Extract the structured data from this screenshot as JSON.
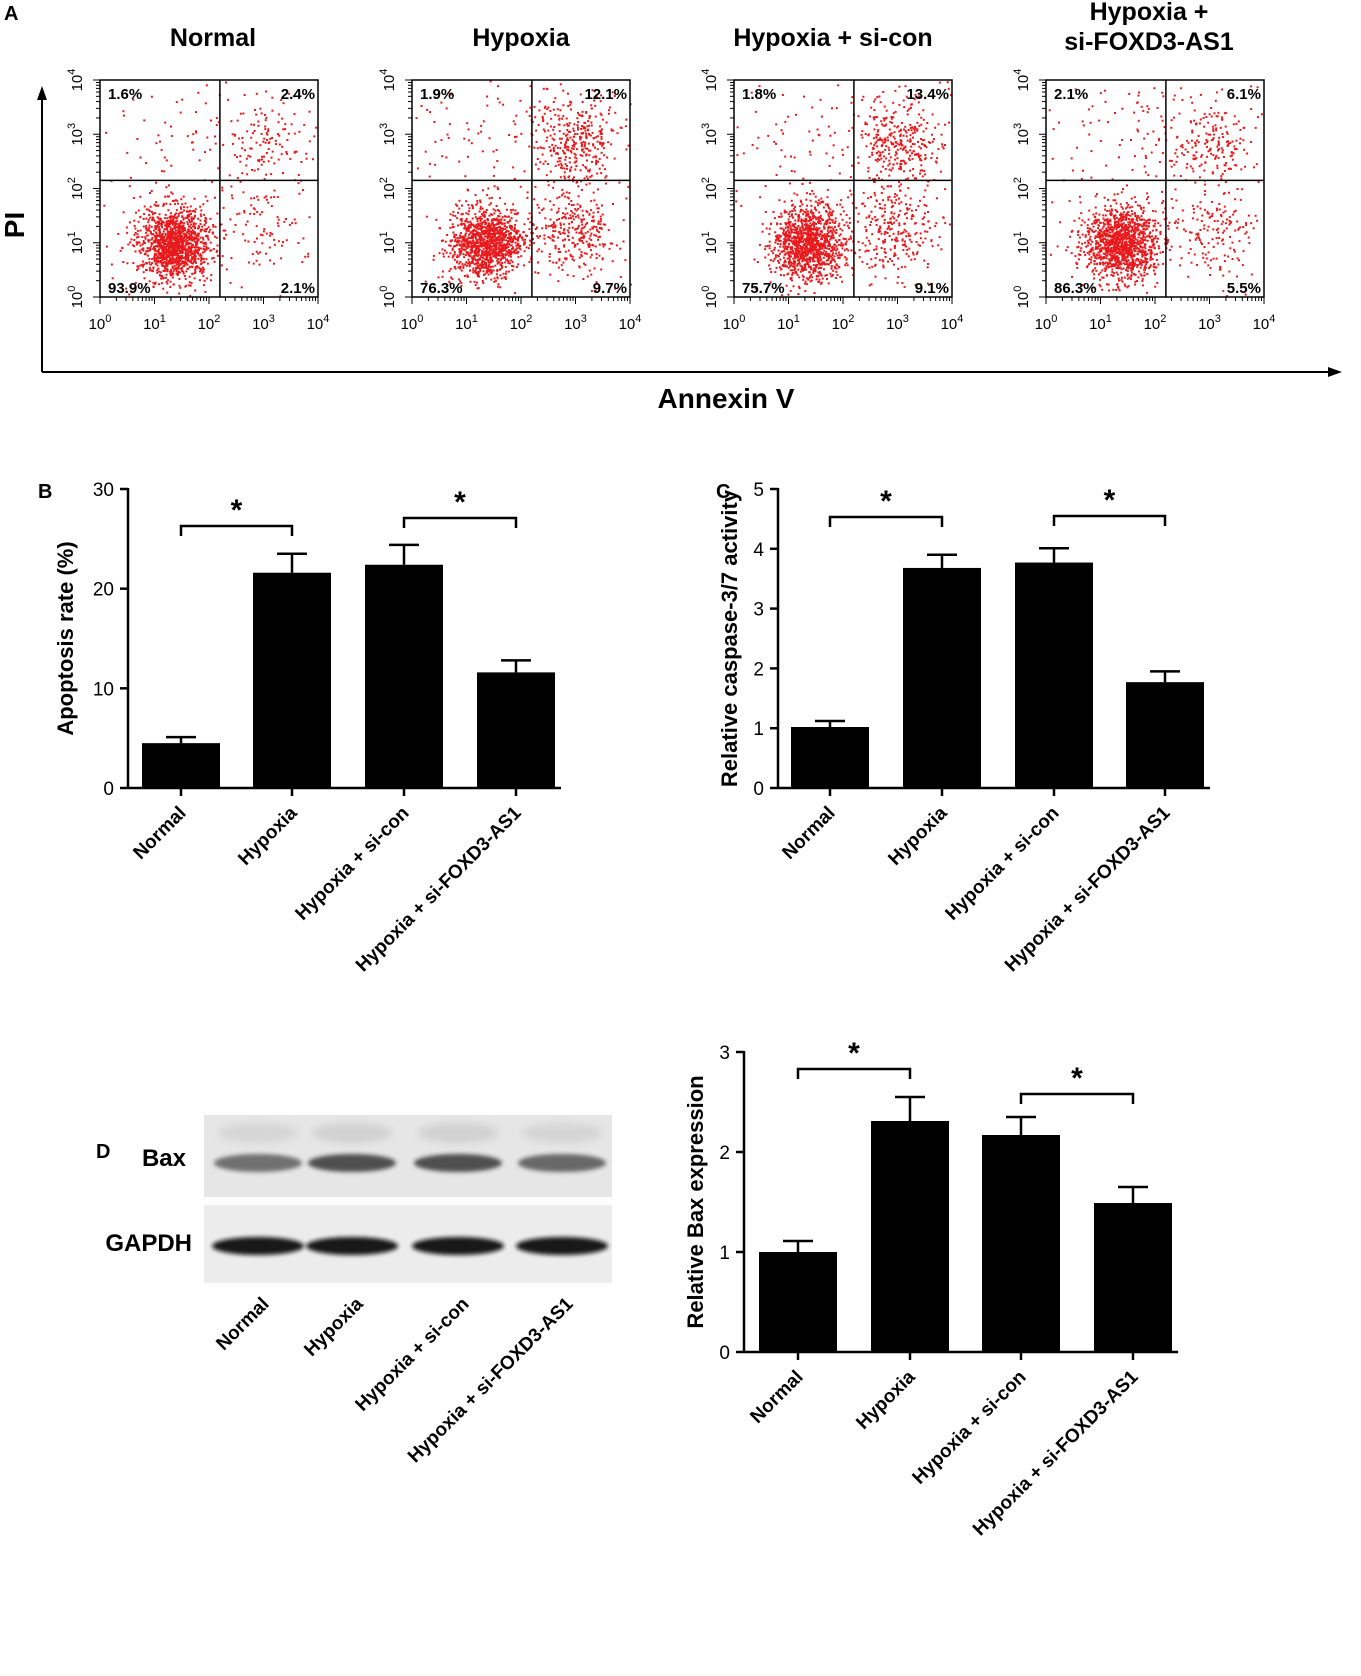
{
  "panels": {
    "A": "A",
    "B": "B",
    "C": "C",
    "D": "D"
  },
  "colors": {
    "dots": "#e8191c",
    "bars": "#000000",
    "axis": "#000000"
  },
  "flow": {
    "y_label": "PI",
    "x_label": "Annexin V",
    "tick_base": "10",
    "tick_exponents": [
      "0",
      "1",
      "2",
      "3",
      "4"
    ],
    "plots": [
      {
        "title": [
          "Normal"
        ],
        "ul": "1.6%",
        "ur": "2.4%",
        "ll": "93.9%",
        "lr": "2.1%",
        "clusters": {
          "ll": 1300,
          "ur": 110,
          "lr": 90,
          "ul": 50
        }
      },
      {
        "title": [
          "Hypoxia"
        ],
        "ul": "1.9%",
        "ur": "12.1%",
        "ll": "76.3%",
        "lr": "9.7%",
        "clusters": {
          "ll": 1150,
          "ur": 350,
          "lr": 300,
          "ul": 55
        }
      },
      {
        "title": [
          "Hypoxia + si-con"
        ],
        "ul": "1.8%",
        "ur": "13.4%",
        "ll": "75.7%",
        "lr": "9.1%",
        "clusters": {
          "ll": 1150,
          "ur": 330,
          "lr": 260,
          "ul": 55
        }
      },
      {
        "title": [
          "Hypoxia +",
          "si-FOXD3-AS1"
        ],
        "ul": "2.1%",
        "ur": "6.1%",
        "ll": "86.3%",
        "lr": "5.5%",
        "clusters": {
          "ll": 1250,
          "ur": 190,
          "lr": 160,
          "ul": 60
        }
      }
    ]
  },
  "chart_data": [
    {
      "type": "bar",
      "panel": "B",
      "categories": [
        "Normal",
        "Hypoxia",
        "Hypoxia + si-con",
        "Hypoxia + si-FOXD3-AS1"
      ],
      "values": [
        4.5,
        21.6,
        22.4,
        11.6
      ],
      "errors": [
        0.6,
        1.9,
        2.0,
        1.2
      ],
      "ylabel": "Apoptosis rate (%)",
      "ylim": [
        0,
        30
      ],
      "yticks": [
        "0",
        "10",
        "20",
        "30"
      ],
      "significance": [
        {
          "from": 0,
          "to": 1,
          "label": "*"
        },
        {
          "from": 2,
          "to": 3,
          "label": "*"
        }
      ]
    },
    {
      "type": "bar",
      "panel": "C",
      "categories": [
        "Normal",
        "Hypoxia",
        "Hypoxia + si-con",
        "Hypoxia + si-FOXD3-AS1"
      ],
      "values": [
        1.02,
        3.68,
        3.77,
        1.77
      ],
      "errors": [
        0.1,
        0.22,
        0.24,
        0.18
      ],
      "ylabel": "Relative caspase-3/7 activity",
      "ylim": [
        0,
        5
      ],
      "yticks": [
        "0",
        "1",
        "2",
        "3",
        "4",
        "5"
      ],
      "significance": [
        {
          "from": 0,
          "to": 1,
          "label": "*"
        },
        {
          "from": 2,
          "to": 3,
          "label": "*"
        }
      ]
    },
    {
      "type": "bar",
      "panel": "D",
      "categories": [
        "Normal",
        "Hypoxia",
        "Hypoxia + si-con",
        "Hypoxia + si-FOXD3-AS1"
      ],
      "values": [
        1.0,
        2.31,
        2.17,
        1.49
      ],
      "errors": [
        0.11,
        0.24,
        0.18,
        0.16
      ],
      "ylabel": "Relative Bax expression",
      "ylim": [
        0,
        3
      ],
      "yticks": [
        "0",
        "1",
        "2",
        "3"
      ],
      "significance": [
        {
          "from": 0,
          "to": 1,
          "label": "*"
        },
        {
          "from": 2,
          "to": 3,
          "label": "*"
        }
      ]
    }
  ],
  "blot": {
    "bands": [
      "Bax",
      "GAPDH"
    ],
    "lanes": [
      "Normal",
      "Hypoxia",
      "Hypoxia + si-con",
      "Hypoxia + si-FOXD3-AS1"
    ],
    "bax_intensity": [
      0.7,
      0.9,
      0.9,
      0.75
    ],
    "gapdh_intensity": [
      1.0,
      1.0,
      1.0,
      1.0
    ]
  }
}
